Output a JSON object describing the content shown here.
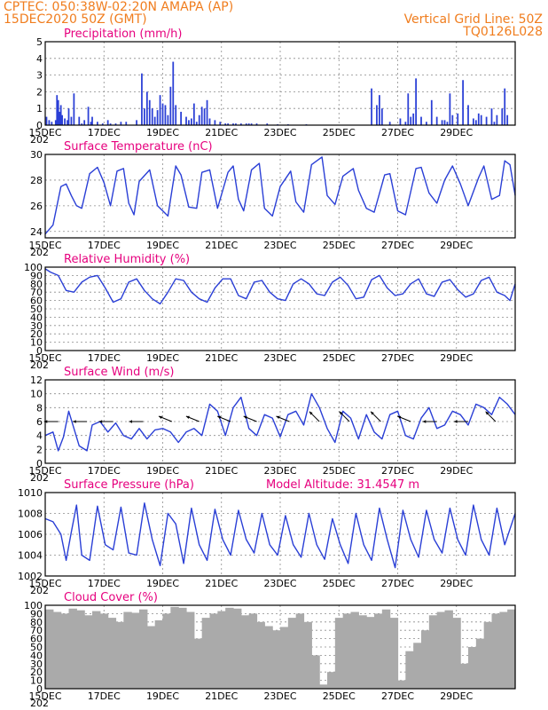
{
  "header": {
    "station_line": "CPTEC:   050:38W-02:20N   AMAPA (AP)",
    "date_line": "15DEC2020 50Z (GMT)",
    "grid_note": "Vertical Grid Line: 50Z",
    "code": "TQ0126L028"
  },
  "colors": {
    "header": "#f07d1e",
    "panel_title": "#e6007e",
    "line": "#2a3fd6",
    "bar": "#2a3fd6",
    "cloud": "#aaaaaa",
    "arrow": "#000000"
  },
  "chart_data": [
    {
      "type": "bar",
      "title": "Precipitation (mm/h)",
      "x_ticks": [
        "15DEC",
        "17DEC",
        "19DEC",
        "21DEC",
        "23DEC",
        "25DEC",
        "27DEC",
        "29DEC"
      ],
      "x_stub": "202",
      "xlim": [
        0,
        360
      ],
      "ylim": [
        0,
        5
      ],
      "y_ticks": [
        "0",
        "1",
        "2",
        "3",
        "4",
        "5"
      ],
      "grid": true,
      "x_unit": "hours from 15DEC",
      "x": [
        1,
        3,
        5,
        8,
        9,
        10,
        11,
        12,
        13,
        15,
        17,
        18,
        20,
        22,
        26,
        28,
        30,
        33,
        35,
        36,
        40,
        44,
        48,
        50,
        54,
        58,
        62,
        70,
        74,
        76,
        78,
        80,
        82,
        84,
        86,
        88,
        90,
        92,
        94,
        96,
        98,
        100,
        104,
        108,
        110,
        112,
        114,
        116,
        118,
        120,
        122,
        124,
        126,
        130,
        134,
        138,
        140,
        144,
        146,
        150,
        154,
        156,
        158,
        162,
        170,
        178,
        186,
        200,
        250,
        254,
        256,
        258,
        264,
        272,
        276,
        278,
        280,
        282,
        284,
        288,
        292,
        296,
        300,
        304,
        306,
        308,
        310,
        312,
        316,
        320,
        324,
        328,
        330,
        332,
        334,
        338,
        342,
        344,
        346,
        350,
        352,
        354
      ],
      "values": [
        0.5,
        0.3,
        0.2,
        0.3,
        1.8,
        1.5,
        0.8,
        1.2,
        0.6,
        0.4,
        0.3,
        1.0,
        0.5,
        1.9,
        0.5,
        0.1,
        0.3,
        1.1,
        0.2,
        0.5,
        0.2,
        0.1,
        0.3,
        0.1,
        0.1,
        0.2,
        0.2,
        0.3,
        3.1,
        1.0,
        2.0,
        1.5,
        1.0,
        0.5,
        0.9,
        1.8,
        1.3,
        1.2,
        0.6,
        2.3,
        3.8,
        1.2,
        0.8,
        0.5,
        0.3,
        0.4,
        1.3,
        0.2,
        0.6,
        1.1,
        1.0,
        1.5,
        0.4,
        0.3,
        0.2,
        0.1,
        0.1,
        0.1,
        0.1,
        0.1,
        0.1,
        0.1,
        0.1,
        0.1,
        0.1,
        0.05,
        0.05,
        0.05,
        2.2,
        1.2,
        1.8,
        1.0,
        0.2,
        0.4,
        0.2,
        1.9,
        0.5,
        0.7,
        2.8,
        0.5,
        0.2,
        1.5,
        0.5,
        0.3,
        0.3,
        0.2,
        1.9,
        0.6,
        0.7,
        2.7,
        1.2,
        0.4,
        0.3,
        0.7,
        0.6,
        0.5,
        1.0,
        0.2,
        0.6,
        1.0,
        2.2,
        0.6
      ]
    },
    {
      "type": "line",
      "title": "Surface Temperature (nC)",
      "x_ticks": [
        "15DEC",
        "17DEC",
        "19DEC",
        "21DEC",
        "23DEC",
        "25DEC",
        "27DEC",
        "29DEC"
      ],
      "x_stub": "202",
      "xlim": [
        0,
        360
      ],
      "ylim": [
        23.5,
        30
      ],
      "y_ticks": [
        "24",
        "26",
        "28",
        "30"
      ],
      "grid": true,
      "x_unit": "hours from 15DEC",
      "x": [
        0,
        6,
        12,
        16,
        20,
        24,
        28,
        34,
        40,
        45,
        50,
        55,
        60,
        64,
        68,
        72,
        80,
        86,
        94,
        100,
        104,
        110,
        116,
        120,
        126,
        132,
        140,
        144,
        148,
        152,
        158,
        164,
        168,
        174,
        180,
        188,
        192,
        198,
        204,
        212,
        216,
        222,
        228,
        236,
        240,
        246,
        252,
        260,
        264,
        270,
        276,
        284,
        288,
        294,
        300,
        306,
        312,
        318,
        324,
        332,
        336,
        342,
        348,
        352,
        356,
        360
      ],
      "values": [
        23.8,
        24.5,
        27.5,
        27.7,
        26.8,
        26.0,
        25.8,
        28.5,
        29.0,
        27.8,
        26.0,
        28.7,
        28.9,
        26.2,
        25.3,
        27.9,
        28.8,
        26.0,
        25.2,
        29.1,
        28.4,
        25.9,
        25.8,
        28.6,
        28.8,
        25.8,
        28.6,
        29.1,
        26.5,
        25.6,
        28.8,
        29.3,
        25.8,
        25.2,
        27.5,
        28.7,
        26.3,
        25.5,
        29.2,
        29.8,
        26.8,
        26.1,
        28.3,
        28.9,
        27.2,
        25.8,
        25.5,
        28.4,
        28.5,
        25.6,
        25.3,
        28.9,
        29.0,
        27.0,
        26.2,
        28.0,
        29.1,
        27.7,
        26.0,
        28.2,
        29.1,
        26.5,
        26.8,
        29.5,
        29.2,
        26.8
      ]
    },
    {
      "type": "line",
      "title": "Relative Humidity (%)",
      "x_ticks": [
        "15DEC",
        "17DEC",
        "19DEC",
        "21DEC",
        "23DEC",
        "25DEC",
        "27DEC",
        "29DEC"
      ],
      "x_stub": "202",
      "xlim": [
        0,
        360
      ],
      "ylim": [
        0,
        100
      ],
      "y_ticks": [
        "0",
        "10",
        "20",
        "30",
        "40",
        "50",
        "60",
        "70",
        "80",
        "90",
        "100"
      ],
      "grid": true,
      "x_unit": "hours from 15DEC",
      "x": [
        0,
        4,
        10,
        16,
        22,
        28,
        34,
        40,
        46,
        52,
        58,
        64,
        70,
        76,
        82,
        88,
        94,
        100,
        106,
        112,
        118,
        124,
        130,
        136,
        142,
        148,
        154,
        160,
        166,
        172,
        178,
        184,
        190,
        196,
        202,
        208,
        214,
        220,
        226,
        232,
        238,
        244,
        250,
        256,
        262,
        268,
        274,
        280,
        286,
        292,
        298,
        304,
        310,
        316,
        322,
        328,
        334,
        340,
        346,
        352,
        356,
        360
      ],
      "values": [
        98,
        94,
        90,
        72,
        70,
        82,
        88,
        90,
        75,
        58,
        62,
        82,
        86,
        72,
        62,
        56,
        70,
        86,
        84,
        70,
        62,
        58,
        75,
        86,
        86,
        66,
        62,
        82,
        84,
        70,
        62,
        60,
        80,
        86,
        80,
        68,
        66,
        82,
        88,
        78,
        62,
        64,
        85,
        90,
        75,
        66,
        68,
        80,
        86,
        68,
        65,
        82,
        85,
        73,
        64,
        68,
        84,
        88,
        70,
        66,
        60,
        80
      ]
    },
    {
      "type": "line",
      "title": "Surface Wind (m/s)",
      "x_ticks": [
        "15DEC",
        "17DEC",
        "19DEC",
        "21DEC",
        "23DEC",
        "25DEC",
        "27DEC",
        "29DEC"
      ],
      "x_stub": "202",
      "xlim": [
        0,
        360
      ],
      "ylim": [
        0,
        12
      ],
      "y_ticks": [
        "0",
        "2",
        "4",
        "6",
        "8",
        "10",
        "12"
      ],
      "grid": true,
      "x_unit": "hours from 15DEC",
      "x": [
        0,
        6,
        10,
        14,
        18,
        22,
        26,
        32,
        36,
        42,
        48,
        54,
        60,
        66,
        72,
        78,
        84,
        90,
        96,
        102,
        108,
        114,
        120,
        126,
        132,
        138,
        144,
        150,
        156,
        162,
        168,
        174,
        180,
        186,
        192,
        198,
        204,
        210,
        216,
        222,
        228,
        234,
        240,
        246,
        252,
        258,
        264,
        270,
        276,
        282,
        288,
        294,
        300,
        306,
        312,
        318,
        324,
        330,
        336,
        342,
        348,
        354,
        360
      ],
      "values": [
        4.0,
        4.5,
        1.8,
        3.8,
        7.5,
        5.0,
        2.5,
        1.8,
        5.5,
        6.0,
        4.5,
        5.8,
        4.0,
        3.5,
        5.0,
        3.5,
        4.8,
        5.0,
        4.5,
        3.0,
        4.5,
        5.0,
        4.0,
        8.5,
        7.5,
        4.0,
        8.0,
        9.5,
        5.0,
        4.0,
        7.0,
        6.5,
        3.8,
        7.0,
        7.5,
        5.5,
        10.0,
        8.0,
        5.0,
        3.0,
        7.5,
        6.5,
        3.5,
        7.0,
        4.5,
        3.5,
        7.0,
        7.5,
        4.0,
        3.5,
        6.5,
        8.0,
        5.0,
        5.5,
        7.5,
        7.0,
        5.5,
        8.5,
        8.0,
        7.0,
        9.5,
        8.5,
        7.0
      ],
      "wind_barbs_x": [
        10,
        32,
        52,
        75,
        97,
        118,
        142,
        162,
        187,
        210,
        233,
        257,
        280,
        300,
        324,
        345
      ],
      "wind_barbs_dir": [
        "E",
        "E",
        "E",
        "E",
        "ENE",
        "ENE",
        "ENE",
        "ENE",
        "ENE",
        "NE",
        "NE",
        "NE",
        "ENE",
        "E",
        "E",
        "NE"
      ]
    },
    {
      "type": "line",
      "title": "Surface Pressure (hPa)",
      "annotation": "Model Altitude: 31.4547 m",
      "x_ticks": [
        "15DEC",
        "17DEC",
        "19DEC",
        "21DEC",
        "23DEC",
        "25DEC",
        "27DEC",
        "29DEC"
      ],
      "x_stub": "202",
      "xlim": [
        0,
        360
      ],
      "ylim": [
        1002,
        1010
      ],
      "y_ticks": [
        "1002",
        "1004",
        "1006",
        "1008",
        "1010"
      ],
      "grid": true,
      "x_unit": "hours from 15DEC",
      "x": [
        0,
        6,
        12,
        16,
        20,
        24,
        28,
        34,
        40,
        46,
        52,
        58,
        64,
        70,
        76,
        82,
        88,
        94,
        100,
        106,
        112,
        118,
        124,
        130,
        136,
        142,
        148,
        154,
        160,
        166,
        172,
        178,
        184,
        190,
        196,
        202,
        208,
        214,
        220,
        226,
        232,
        238,
        244,
        250,
        256,
        262,
        268,
        274,
        280,
        286,
        292,
        298,
        304,
        310,
        316,
        322,
        328,
        334,
        340,
        346,
        352,
        360
      ],
      "values": [
        1007.5,
        1007.2,
        1006.0,
        1003.5,
        1006.2,
        1008.8,
        1004.0,
        1003.5,
        1008.7,
        1005.0,
        1004.5,
        1008.6,
        1004.2,
        1004.0,
        1009.0,
        1005.5,
        1003.0,
        1008.0,
        1007.0,
        1003.2,
        1008.5,
        1005.0,
        1003.5,
        1008.4,
        1005.5,
        1004.0,
        1008.3,
        1005.5,
        1004.2,
        1008.0,
        1005.0,
        1004.0,
        1007.8,
        1005.0,
        1003.8,
        1008.0,
        1005.0,
        1003.6,
        1007.5,
        1005.0,
        1003.2,
        1008.0,
        1005.0,
        1003.5,
        1008.5,
        1005.5,
        1002.8,
        1008.3,
        1005.5,
        1003.8,
        1008.3,
        1005.5,
        1004.2,
        1008.5,
        1005.5,
        1004.0,
        1008.8,
        1005.5,
        1004.0,
        1008.5,
        1005.0,
        1008.0
      ]
    },
    {
      "type": "bar",
      "title": "Cloud Cover (%)",
      "x_ticks": [
        "15DEC",
        "17DEC",
        "19DEC",
        "21DEC",
        "23DEC",
        "25DEC",
        "27DEC",
        "29DEC"
      ],
      "x_stub": "202",
      "xlim": [
        0,
        360
      ],
      "ylim": [
        0,
        100
      ],
      "y_ticks": [
        "0",
        "10",
        "20",
        "30",
        "40",
        "50",
        "60",
        "70",
        "80",
        "90",
        "100"
      ],
      "grid": true,
      "x_unit": "hours from 15DEC",
      "x": [
        0,
        6,
        12,
        18,
        24,
        30,
        36,
        42,
        48,
        54,
        60,
        66,
        72,
        78,
        84,
        90,
        96,
        102,
        108,
        114,
        120,
        126,
        132,
        138,
        144,
        150,
        156,
        162,
        168,
        174,
        180,
        186,
        192,
        198,
        204,
        210,
        216,
        222,
        228,
        234,
        240,
        246,
        252,
        258,
        264,
        270,
        276,
        282,
        288,
        294,
        300,
        306,
        312,
        318,
        324,
        330,
        336,
        342,
        348,
        354
      ],
      "values": [
        95,
        92,
        90,
        96,
        94,
        88,
        93,
        90,
        85,
        80,
        92,
        91,
        95,
        75,
        82,
        90,
        98,
        97,
        92,
        60,
        85,
        90,
        93,
        97,
        96,
        88,
        90,
        80,
        75,
        70,
        74,
        85,
        90,
        80,
        40,
        5,
        20,
        85,
        90,
        92,
        88,
        86,
        90,
        95,
        85,
        10,
        45,
        55,
        70,
        88,
        92,
        94,
        85,
        30,
        50,
        60,
        80,
        90,
        92,
        95
      ]
    }
  ]
}
